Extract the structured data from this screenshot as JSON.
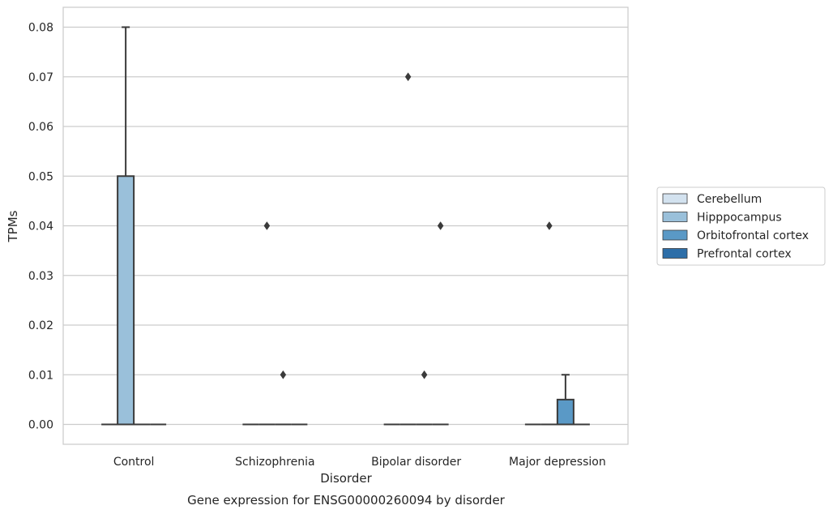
{
  "chart_data": {
    "type": "box",
    "caption": "Gene expression for ENSG00000260094 by disorder",
    "xlabel": "Disorder",
    "ylabel": "TPMs",
    "categories": [
      "Control",
      "Schizophrenia",
      "Bipolar disorder",
      "Major depression"
    ],
    "ylim": [
      -0.004,
      0.084
    ],
    "yticks": [
      "0.00",
      "0.01",
      "0.02",
      "0.03",
      "0.04",
      "0.05",
      "0.06",
      "0.07",
      "0.08"
    ],
    "grid": true,
    "legend_position": "right",
    "series": [
      {
        "name": "Cerebellum",
        "color": "#d3e2ef",
        "boxes": [
          {
            "q1": 0,
            "median": 0,
            "q3": 0,
            "whislo": 0,
            "whishi": 0,
            "fliers": []
          },
          {
            "q1": 0,
            "median": 0,
            "q3": 0,
            "whislo": 0,
            "whishi": 0,
            "fliers": []
          },
          {
            "q1": 0,
            "median": 0,
            "q3": 0,
            "whislo": 0,
            "whishi": 0,
            "fliers": []
          },
          {
            "q1": 0,
            "median": 0,
            "q3": 0,
            "whislo": 0,
            "whishi": 0,
            "fliers": []
          }
        ]
      },
      {
        "name": "Hipppocampus",
        "color": "#9ac0da",
        "boxes": [
          {
            "q1": 0,
            "median": 0,
            "q3": 0.05,
            "whislo": 0,
            "whishi": 0.08,
            "fliers": []
          },
          {
            "q1": 0,
            "median": 0,
            "q3": 0,
            "whislo": 0,
            "whishi": 0,
            "fliers": [
              0.04
            ]
          },
          {
            "q1": 0,
            "median": 0,
            "q3": 0,
            "whislo": 0,
            "whishi": 0,
            "fliers": [
              0.07
            ]
          },
          {
            "q1": 0,
            "median": 0,
            "q3": 0,
            "whislo": 0,
            "whishi": 0,
            "fliers": [
              0.04
            ]
          }
        ]
      },
      {
        "name": "Orbitofrontal cortex",
        "color": "#5a99c6",
        "boxes": [
          {
            "q1": 0,
            "median": 0,
            "q3": 0,
            "whislo": 0,
            "whishi": 0,
            "fliers": []
          },
          {
            "q1": 0,
            "median": 0,
            "q3": 0,
            "whislo": 0,
            "whishi": 0,
            "fliers": [
              0.01
            ]
          },
          {
            "q1": 0,
            "median": 0,
            "q3": 0,
            "whislo": 0,
            "whishi": 0,
            "fliers": [
              0.01
            ]
          },
          {
            "q1": 0,
            "median": 0,
            "q3": 0.005,
            "whislo": 0,
            "whishi": 0.01,
            "fliers": []
          }
        ]
      },
      {
        "name": "Prefrontal cortex",
        "color": "#2d6ea8",
        "boxes": [
          {
            "q1": 0,
            "median": 0,
            "q3": 0,
            "whislo": 0,
            "whishi": 0,
            "fliers": []
          },
          {
            "q1": 0,
            "median": 0,
            "q3": 0,
            "whislo": 0,
            "whishi": 0,
            "fliers": []
          },
          {
            "q1": 0,
            "median": 0,
            "q3": 0,
            "whislo": 0,
            "whishi": 0,
            "fliers": [
              0.04
            ]
          },
          {
            "q1": 0,
            "median": 0,
            "q3": 0,
            "whislo": 0,
            "whishi": 0,
            "fliers": []
          }
        ]
      }
    ]
  }
}
